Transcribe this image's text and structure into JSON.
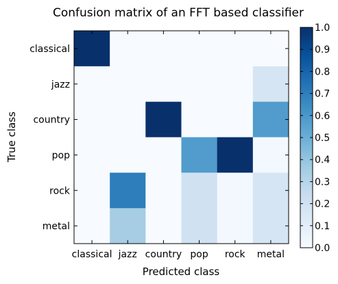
{
  "chart_data": {
    "type": "heatmap",
    "title": "Confusion matrix of an FFT based classifier",
    "xlabel": "Predicted class",
    "ylabel": "True class",
    "x_categories": [
      "classical",
      "jazz",
      "country",
      "pop",
      "rock",
      "metal"
    ],
    "y_categories": [
      "classical",
      "jazz",
      "country",
      "pop",
      "rock",
      "metal"
    ],
    "values": [
      [
        1.0,
        0.0,
        0.0,
        0.0,
        0.0,
        0.0
      ],
      [
        0.0,
        0.0,
        0.0,
        0.0,
        0.0,
        0.17
      ],
      [
        0.0,
        0.0,
        1.0,
        0.0,
        0.0,
        0.58
      ],
      [
        0.0,
        0.0,
        0.0,
        0.58,
        1.0,
        0.02
      ],
      [
        0.0,
        0.7,
        0.0,
        0.2,
        0.02,
        0.17
      ],
      [
        0.0,
        0.35,
        0.0,
        0.2,
        0.02,
        0.17
      ]
    ],
    "colormap": "Blues",
    "vmin": 0.0,
    "vmax": 1.0,
    "colorbar_ticks": [
      "0.0",
      "0.1",
      "0.2",
      "0.3",
      "0.4",
      "0.5",
      "0.6",
      "0.7",
      "0.8",
      "0.9",
      "1.0"
    ]
  }
}
